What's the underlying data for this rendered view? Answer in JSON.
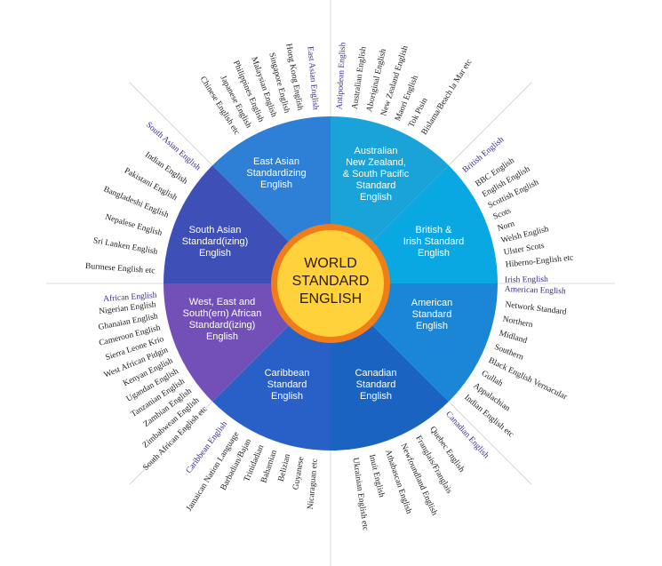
{
  "center": {
    "line1": "WORLD",
    "line2": "STANDARD",
    "line3": "ENGLISH"
  },
  "colors": {
    "center_fill": "#f6a823",
    "center_core": "#ffd23c",
    "center_ring": "#f07d1a",
    "east_asian": "#2e7fd6",
    "australian": "#1aa3d8",
    "british": "#0aa8e2",
    "american": "#1b86d6",
    "canadian": "#1a63c0",
    "caribbean": "#2860c8",
    "african": "#7350b8",
    "south_asian": "#3f4fb8"
  },
  "regions": [
    {
      "id": "east_asian",
      "lines": [
        "East Asian",
        "Standardizing",
        "English"
      ]
    },
    {
      "id": "australian",
      "lines": [
        "Australian",
        "New Zealand,",
        "& South Pacific",
        "Standard",
        "English"
      ]
    },
    {
      "id": "british",
      "lines": [
        "British &",
        "Irish Standard",
        "English"
      ]
    },
    {
      "id": "american",
      "lines": [
        "American",
        "Standard",
        "English"
      ]
    },
    {
      "id": "canadian",
      "lines": [
        "Canadian",
        "Standard",
        "English"
      ]
    },
    {
      "id": "caribbean",
      "lines": [
        "Caribbean",
        "Standard",
        "English"
      ]
    },
    {
      "id": "african",
      "lines": [
        "West, East and",
        "South(ern) African",
        "Standard(izing)",
        "English"
      ]
    },
    {
      "id": "south_asian",
      "lines": [
        "South Asian",
        "Standard(izing)",
        "English"
      ]
    }
  ],
  "groups": [
    {
      "id": "east_asian",
      "label": "East Asian English"
    },
    {
      "id": "antipodean",
      "label": "Antipodean English"
    },
    {
      "id": "british",
      "label": "British English"
    },
    {
      "id": "irish",
      "label": "Irish English"
    },
    {
      "id": "american",
      "label": "American English"
    },
    {
      "id": "canadian",
      "label": "Canadian English"
    },
    {
      "id": "caribbean",
      "label": "Caribbean English"
    },
    {
      "id": "african",
      "label": "African English"
    },
    {
      "id": "south_asian",
      "label": "South Asian English"
    }
  ],
  "varieties": {
    "east_asian": [
      "Hong Kong English",
      "Singapore English",
      "Malaysian English",
      "Philippines English",
      "Japanese English",
      "Chinese English etc"
    ],
    "antipodean": [
      "Australian English",
      "Aboriginal English",
      "New Zealand English",
      "Maori English",
      "Tok Pisin",
      "Bislama/Beach la Mar etc"
    ],
    "british": [
      "BBC English",
      "English English",
      "Scottish English",
      "Scots",
      "Norn",
      "Welsh English",
      "Ulster Scots",
      "Hiberno-English etc"
    ],
    "american": [
      "Network Standard",
      "Northern",
      "Midland",
      "Southern",
      "Black English Vernacular",
      "Gullah",
      "Appalachian",
      "Indian English etc"
    ],
    "canadian": [
      "Quebec English",
      "Franglais/Franglais",
      "Newfoundland English",
      "Athabascan English",
      "Inuit English",
      "Ukrainian English etc"
    ],
    "caribbean": [
      "Nicaraguan etc",
      "Guyanese",
      "Belizian",
      "Bahamian",
      "Trinidadian",
      "Barbadian/Bajan",
      "Jamaican Nation Language"
    ],
    "african": [
      "Nigerian English",
      "Ghanaian English",
      "Cameroon English",
      "Sierra Leone Krio",
      "West African Pidgin",
      "Kenyan English",
      "Ugandan English",
      "Tanzanian English",
      "Zambian English",
      "Zimbabwean English",
      "South African English etc"
    ],
    "south_asian": [
      "Indian English",
      "Pakistani English",
      "Bangladeshi English",
      "Nepalese English",
      "Sri Lanken English",
      "Burmese English etc"
    ]
  }
}
